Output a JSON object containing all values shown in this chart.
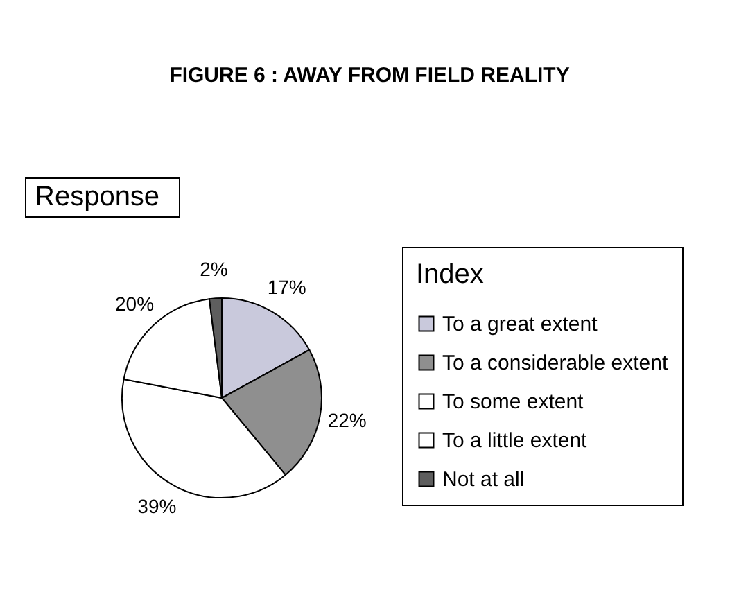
{
  "chart_data": {
    "type": "pie",
    "title": "FIGURE 6 : AWAY FROM FIELD REALITY",
    "legend_title": "Index",
    "annotations": [
      "Response"
    ],
    "categories": [
      "To a great extent",
      "To a considerable extent",
      "To some extent",
      "To a little extent",
      "Not at all"
    ],
    "values": [
      17,
      22,
      39,
      20,
      2
    ],
    "value_labels": [
      "17%",
      "22%",
      "39%",
      "20%",
      "2%"
    ],
    "colors": [
      "#c9c9dc",
      "#8f8f8f",
      "#ffffff",
      "#ffffff",
      "#5e5e5e"
    ],
    "legend": "right"
  }
}
